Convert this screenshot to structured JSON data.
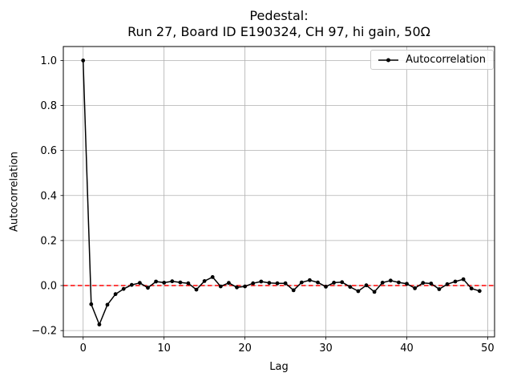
{
  "colors": {
    "background": "#ffffff",
    "grid": "#b0b0b0",
    "spine": "#000000",
    "tick": "#000000",
    "text": "#000000",
    "zero_line": "#ff0000",
    "series": "#000000",
    "legend_border": "#cccccc"
  },
  "chart_data": {
    "type": "line",
    "title_lines": [
      "Pedestal:",
      "Run 27, Board ID E190324, CH 97, hi gain, 50Ω"
    ],
    "xlabel": "Lag",
    "ylabel": "Autocorrelation",
    "grid": true,
    "legend_position": "upper right",
    "xlim": [
      -2.45,
      50.85
    ],
    "ylim": [
      -0.228,
      1.062
    ],
    "xticks": [
      {
        "v": 0,
        "label": "0"
      },
      {
        "v": 10,
        "label": "10"
      },
      {
        "v": 20,
        "label": "20"
      },
      {
        "v": 30,
        "label": "30"
      },
      {
        "v": 40,
        "label": "40"
      },
      {
        "v": 50,
        "label": "50"
      }
    ],
    "yticks": [
      {
        "v": -0.2,
        "label": "−0.2"
      },
      {
        "v": 0.0,
        "label": "0.0"
      },
      {
        "v": 0.2,
        "label": "0.2"
      },
      {
        "v": 0.4,
        "label": "0.4"
      },
      {
        "v": 0.6,
        "label": "0.6"
      },
      {
        "v": 0.8,
        "label": "0.8"
      },
      {
        "v": 1.0,
        "label": "1.0"
      }
    ],
    "zero_line": {
      "y": 0.0,
      "color": "#ff0000",
      "style": "dashed"
    },
    "series": [
      {
        "name": "Autocorrelation",
        "color": "#000000",
        "marker": "dot",
        "x": [
          0,
          1,
          2,
          3,
          4,
          5,
          6,
          7,
          8,
          9,
          10,
          11,
          12,
          13,
          14,
          15,
          16,
          17,
          18,
          19,
          20,
          21,
          22,
          23,
          24,
          25,
          26,
          27,
          28,
          29,
          30,
          31,
          32,
          33,
          34,
          35,
          36,
          37,
          38,
          39,
          40,
          41,
          42,
          43,
          44,
          45,
          46,
          47,
          48,
          49
        ],
        "y": [
          1.0,
          -0.083,
          -0.173,
          -0.085,
          -0.038,
          -0.015,
          0.003,
          0.012,
          -0.01,
          0.018,
          0.013,
          0.019,
          0.014,
          0.01,
          -0.018,
          0.02,
          0.038,
          -0.004,
          0.012,
          -0.008,
          -0.004,
          0.01,
          0.018,
          0.012,
          0.01,
          0.01,
          -0.021,
          0.014,
          0.024,
          0.014,
          -0.005,
          0.013,
          0.015,
          -0.006,
          -0.025,
          0.001,
          -0.028,
          0.013,
          0.022,
          0.014,
          0.008,
          -0.012,
          0.012,
          0.009,
          -0.016,
          0.006,
          0.018,
          0.028,
          -0.013,
          -0.024
        ]
      }
    ]
  }
}
